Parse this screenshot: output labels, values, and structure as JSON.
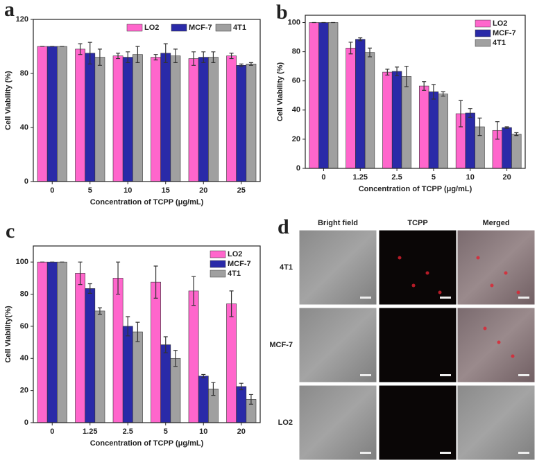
{
  "chart_data": [
    {
      "type": "bar",
      "label": "a",
      "x_label": "Concentration of TCPP (μg/mL)",
      "y_label": "Cell Viability (%)",
      "categories": [
        "0",
        "5",
        "10",
        "15",
        "20",
        "25"
      ],
      "series": [
        {
          "name": "LO2",
          "color": "#ff66cc",
          "values": [
            100,
            98,
            93,
            92,
            91,
            93
          ],
          "errors": [
            0,
            4,
            2,
            2,
            5,
            2
          ]
        },
        {
          "name": "MCF-7",
          "color": "#2a2aa8",
          "values": [
            100,
            95,
            92,
            95,
            92,
            86
          ],
          "errors": [
            0,
            8,
            4,
            7,
            4,
            1
          ]
        },
        {
          "name": "4T1",
          "color": "#a0a0a0",
          "values": [
            100,
            92,
            94,
            93,
            92,
            87
          ],
          "errors": [
            0,
            6,
            6,
            5,
            4,
            1
          ]
        }
      ],
      "ylim": [
        0,
        120
      ],
      "yticks": [
        0,
        40,
        80,
        120
      ],
      "legend": "top"
    },
    {
      "type": "bar",
      "label": "b",
      "x_label": "Concentration of TCPP (μg/mL)",
      "y_label": "Cell Viability (%)",
      "categories": [
        "0",
        "1.25",
        "2.5",
        "5",
        "10",
        "20"
      ],
      "series": [
        {
          "name": "LO2",
          "color": "#ff66cc",
          "values": [
            100,
            82.5,
            66,
            56.5,
            37.5,
            26
          ],
          "errors": [
            0,
            4,
            2,
            3,
            9,
            6
          ]
        },
        {
          "name": "MCF-7",
          "color": "#2a2aa8",
          "values": [
            100,
            88.5,
            66.5,
            52.5,
            38,
            28
          ],
          "errors": [
            0,
            1,
            3,
            5,
            3,
            0.5
          ]
        },
        {
          "name": "4T1",
          "color": "#a0a0a0",
          "values": [
            100,
            79.5,
            63,
            51,
            28.5,
            23.5
          ],
          "errors": [
            0,
            3,
            7,
            1.5,
            6,
            1
          ]
        }
      ],
      "ylim": [
        0,
        105
      ],
      "yticks": [
        0,
        20,
        40,
        60,
        80,
        100
      ],
      "legend": "top-right"
    },
    {
      "type": "bar",
      "label": "c",
      "x_label": "Concentration of TCPP (μg/mL)",
      "y_label": "Cell Viability(%)",
      "categories": [
        "0",
        "1.25",
        "2.5",
        "5",
        "10",
        "20"
      ],
      "series": [
        {
          "name": "LO2",
          "color": "#ff66cc",
          "values": [
            100,
            93,
            90,
            87.5,
            82,
            74
          ],
          "errors": [
            0,
            7,
            10,
            10,
            9,
            8
          ]
        },
        {
          "name": "MCF-7",
          "color": "#2a2aa8",
          "values": [
            100,
            83.5,
            60,
            48.5,
            29,
            22.5
          ],
          "errors": [
            0,
            3,
            6,
            5,
            1,
            2
          ]
        },
        {
          "name": "4T1",
          "color": "#a0a0a0",
          "values": [
            100,
            69.5,
            56.5,
            40,
            21,
            14.5
          ],
          "errors": [
            0,
            2,
            6,
            5,
            4,
            3
          ]
        }
      ],
      "ylim": [
        0,
        110
      ],
      "yticks": [
        0,
        20,
        40,
        60,
        80,
        100
      ],
      "legend": "top-right"
    }
  ],
  "image_panel": {
    "label": "d",
    "columns": [
      "Bright field",
      "TCPP",
      "Merged"
    ],
    "rows": [
      "4T1",
      "MCF-7",
      "LO2"
    ]
  }
}
